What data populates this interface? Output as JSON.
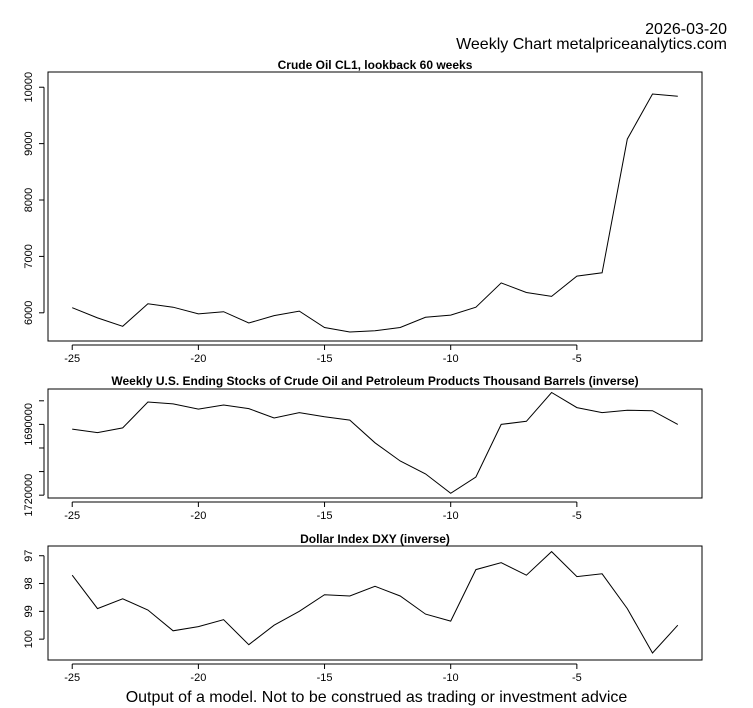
{
  "header": {
    "date": "2026-03-20",
    "subtitle": "Weekly Chart metalpriceanalytics.com"
  },
  "footer": "Output of a model. Not to be construed as trading or investment advice",
  "chart_data": [
    {
      "type": "line",
      "title": "Crude Oil CL1, lookback 60 weeks",
      "x": [
        -25,
        -24,
        -23,
        -22,
        -21,
        -20,
        -19,
        -18,
        -17,
        -16,
        -15,
        -14,
        -13,
        -12,
        -11,
        -10,
        -9,
        -8,
        -7,
        -6,
        -5,
        -4,
        -3,
        -2,
        -1
      ],
      "values": [
        6090,
        5910,
        5760,
        6160,
        6100,
        5980,
        6020,
        5820,
        5950,
        6030,
        5740,
        5660,
        5680,
        5740,
        5920,
        5960,
        6100,
        6530,
        6360,
        6290,
        6650,
        6710,
        9080,
        9880,
        9840
      ],
      "xticks": [
        -25,
        -20,
        -15,
        -10,
        -5
      ],
      "xtick_labels": [
        "-25",
        "-20",
        "-15",
        "-10",
        "-5"
      ],
      "yticks": [
        6000,
        7000,
        8000,
        9000,
        10000
      ],
      "ytick_labels": [
        "6000",
        "7000",
        "8000",
        "9000",
        "10000"
      ],
      "xlim": [
        -25.96,
        -0.04
      ],
      "ylim": [
        5500,
        10270
      ],
      "inverse": false
    },
    {
      "type": "line",
      "title": "Weekly U.S. Ending Stocks of Crude Oil and Petroleum Products Thousand Barrels (inverse)",
      "x": [
        -25,
        -24,
        -23,
        -22,
        -21,
        -20,
        -19,
        -18,
        -17,
        -16,
        -15,
        -14,
        -13,
        -12,
        -11,
        -10,
        -9,
        -8,
        -7,
        -6,
        -5,
        -4,
        -3,
        -2,
        -1
      ],
      "values": [
        1692000,
        1693500,
        1691500,
        1680500,
        1681300,
        1683500,
        1681800,
        1683300,
        1687300,
        1685000,
        1686800,
        1688200,
        1697800,
        1705500,
        1711000,
        1719200,
        1712300,
        1690000,
        1688700,
        1676500,
        1682900,
        1685000,
        1684000,
        1684200,
        1690000
      ],
      "xticks": [
        -25,
        -20,
        -15,
        -10,
        -5
      ],
      "xtick_labels": [
        "-25",
        "-20",
        "-15",
        "-10",
        "-5"
      ],
      "yticks": [
        1690000,
        1720000
      ],
      "ytick_labels": [
        "1690000",
        "1720000"
      ],
      "xlim": [
        -25.96,
        -0.04
      ],
      "ylim": [
        1675000,
        1721200
      ],
      "inverse": true
    },
    {
      "type": "line",
      "title": "Dollar Index DXY (inverse)",
      "x": [
        -25,
        -24,
        -23,
        -22,
        -21,
        -20,
        -19,
        -18,
        -17,
        -16,
        -15,
        -14,
        -13,
        -12,
        -11,
        -10,
        -9,
        -8,
        -7,
        -6,
        -5,
        -4,
        -3,
        -2,
        -1
      ],
      "values": [
        97.7,
        98.9,
        98.55,
        98.95,
        99.7,
        99.55,
        99.3,
        100.2,
        99.5,
        99.0,
        98.4,
        98.45,
        98.1,
        98.45,
        99.1,
        99.35,
        97.5,
        97.25,
        97.7,
        96.85,
        97.75,
        97.65,
        98.9,
        100.5,
        99.5
      ],
      "xticks": [
        -25,
        -20,
        -15,
        -10,
        -5
      ],
      "xtick_labels": [
        "-25",
        "-20",
        "-15",
        "-10",
        "-5"
      ],
      "yticks": [
        97,
        98,
        99,
        100
      ],
      "ytick_labels": [
        "97",
        "98",
        "99",
        "100"
      ],
      "xlim": [
        -25.96,
        -0.04
      ],
      "ylim": [
        96.65,
        100.75
      ],
      "inverse": true
    }
  ]
}
